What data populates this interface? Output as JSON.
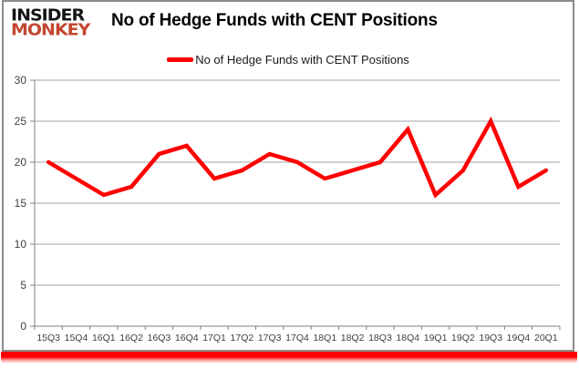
{
  "logo": {
    "line1": "INSIDER",
    "line2": "MONKEY"
  },
  "header": {
    "title": "No of Hedge Funds with CENT Positions"
  },
  "legend": {
    "label": "No of Hedge Funds with CENT Positions"
  },
  "colors": {
    "series_line": "#ff0000",
    "logo_accent": "#c2462e",
    "logo_primary": "#141414",
    "gridline": "#a6a6a6",
    "axis_line": "#808080",
    "axis_text": "#3f3f3f",
    "panel_border": "#8c8c8c",
    "bottom_bar": "#ff0000"
  },
  "chart_data": {
    "type": "line",
    "title": "No of Hedge Funds with CENT Positions",
    "categories": [
      "15Q3",
      "15Q4",
      "16Q1",
      "16Q2",
      "16Q3",
      "16Q4",
      "17Q1",
      "17Q2",
      "17Q3",
      "17Q4",
      "18Q1",
      "18Q2",
      "18Q3",
      "18Q4",
      "19Q1",
      "19Q2",
      "19Q3",
      "19Q4",
      "20Q1"
    ],
    "series": [
      {
        "name": "No of Hedge Funds with CENT Positions",
        "values": [
          20,
          18,
          16,
          17,
          21,
          22,
          18,
          19,
          21,
          20,
          18,
          19,
          20,
          24,
          16,
          19,
          25,
          17,
          19
        ]
      }
    ],
    "xlabel": "",
    "ylabel": "",
    "ylim": [
      0,
      30
    ],
    "yticks": [
      0,
      5,
      10,
      15,
      20,
      25,
      30
    ],
    "grid": true,
    "legend_position": "top-center",
    "line_color": "#ff0000"
  }
}
